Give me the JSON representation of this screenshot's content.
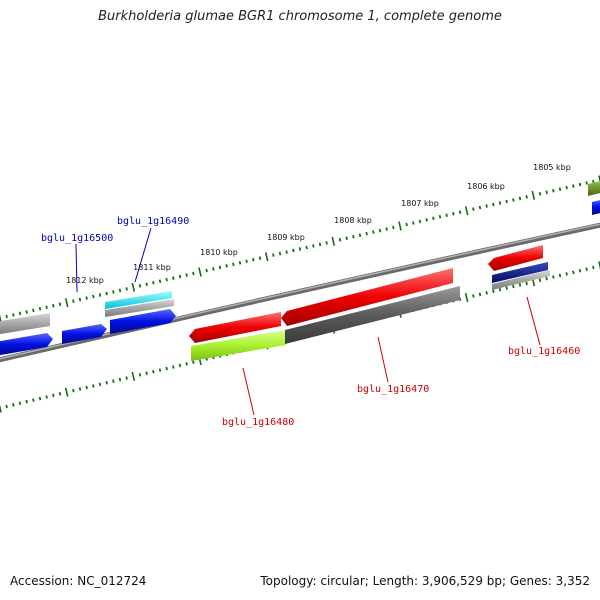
{
  "title": "Burkholderia glumae BGR1 chromosome 1, complete genome",
  "footer": {
    "accession": "Accession: NC_012724",
    "summary": "Topology: circular; Length: 3,906,529 bp; Genes: 3,352"
  },
  "ticks": [
    "1812 kbp",
    "1811 kbp",
    "1810 kbp",
    "1809 kbp",
    "1808 kbp",
    "1807 kbp",
    "1806 kbp",
    "1805 kbp"
  ],
  "genes": {
    "g16500": "bglu_1g16500",
    "g16490": "bglu_1g16490",
    "g16480": "bglu_1g16480",
    "g16470": "bglu_1g16470",
    "g16460": "bglu_1g16460"
  },
  "colors": {
    "forward_label": "#0000bb",
    "reverse_label": "#cc0000",
    "blue": "#0010e0",
    "red": "#ee0000",
    "cyan": "#00e0f0",
    "gray": "#9a9a9a",
    "dark_gray": "#5a5a5a",
    "lime": "#aaf030",
    "navy": "#000a80",
    "olive": "#6a8a20",
    "tick_green": "#107010"
  }
}
